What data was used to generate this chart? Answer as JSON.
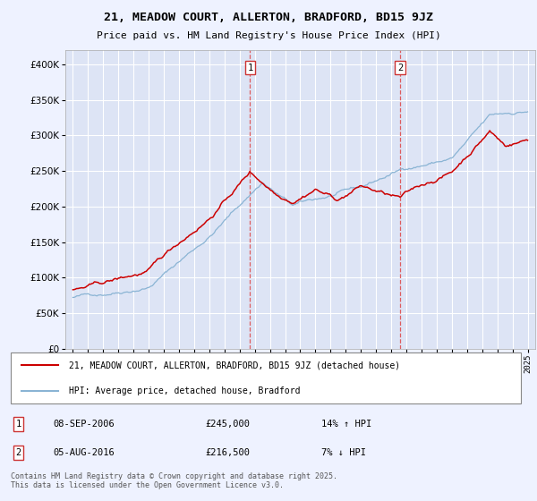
{
  "title": "21, MEADOW COURT, ALLERTON, BRADFORD, BD15 9JZ",
  "subtitle": "Price paid vs. HM Land Registry's House Price Index (HPI)",
  "legend_label_red": "21, MEADOW COURT, ALLERTON, BRADFORD, BD15 9JZ (detached house)",
  "legend_label_blue": "HPI: Average price, detached house, Bradford",
  "transaction1_date": "08-SEP-2006",
  "transaction1_price": "£245,000",
  "transaction1_hpi": "14% ↑ HPI",
  "transaction2_date": "05-AUG-2016",
  "transaction2_price": "£216,500",
  "transaction2_hpi": "7% ↓ HPI",
  "footer": "Contains HM Land Registry data © Crown copyright and database right 2025.\nThis data is licensed under the Open Government Licence v3.0.",
  "red_color": "#cc0000",
  "blue_color": "#8ab4d4",
  "vline_color": "#dd4444",
  "background_color": "#eef2ff",
  "plot_bg_color": "#dde4f5",
  "grid_color": "#ffffff",
  "transaction1_x_year": 2006.69,
  "transaction2_x_year": 2016.59,
  "ylim_min": 0,
  "ylim_max": 420000,
  "xlim_min": 1994.5,
  "xlim_max": 2025.5
}
